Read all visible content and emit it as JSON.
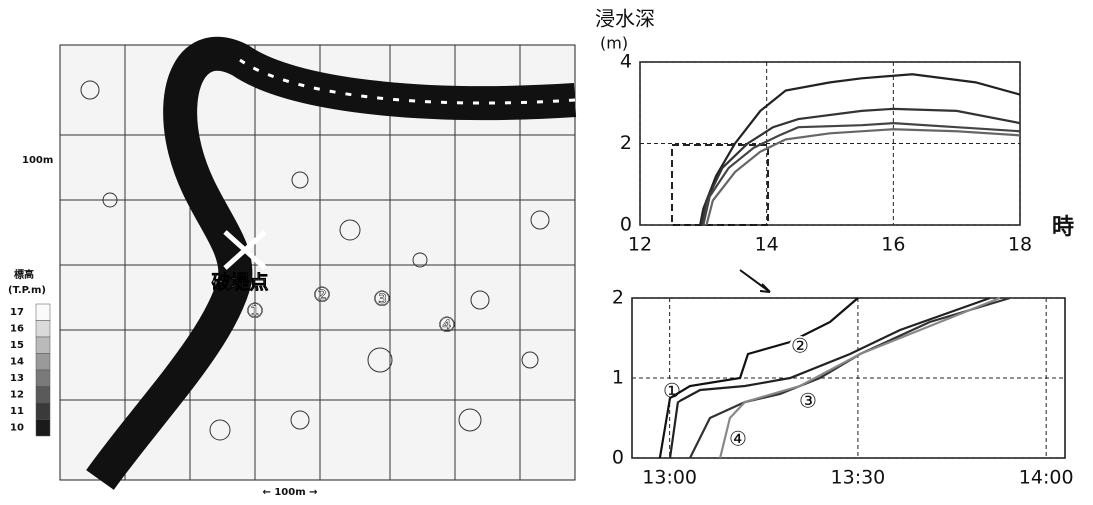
{
  "map": {
    "break_point": "破堤点",
    "points": [
      "①",
      "②",
      "③",
      "④"
    ],
    "legend": {
      "title": "標高",
      "unit": "(T.P.m)",
      "levels": [
        17,
        16,
        15,
        14,
        13,
        12,
        11,
        10
      ]
    },
    "scale_vertical": "100m",
    "scale_horizontal": "← 100m →"
  },
  "chart_data": [
    {
      "type": "line",
      "title": "浸水深",
      "y_label": "(m)",
      "x_label": "時",
      "xlim": [
        12,
        18
      ],
      "xticks": [
        12,
        14,
        16,
        18
      ],
      "ylim": [
        0,
        4
      ],
      "yticks": [
        0,
        2,
        4
      ],
      "grid": true,
      "series": [
        {
          "color": "#222",
          "x": [
            12.95,
            13.0,
            13.2,
            13.5,
            13.9,
            14.3,
            15.0,
            15.5,
            16.3,
            17.3,
            18.0
          ],
          "values": [
            0,
            0.4,
            1.2,
            2.0,
            2.8,
            3.3,
            3.5,
            3.6,
            3.7,
            3.5,
            3.2
          ]
        },
        {
          "color": "#333",
          "x": [
            12.97,
            13.05,
            13.3,
            13.7,
            14.1,
            14.5,
            15.5,
            16.0,
            17.0,
            18.0
          ],
          "values": [
            0,
            0.6,
            1.4,
            2.0,
            2.4,
            2.6,
            2.8,
            2.85,
            2.8,
            2.5
          ]
        },
        {
          "color": "#444",
          "x": [
            13.0,
            13.1,
            13.4,
            13.8,
            14.2,
            14.5,
            15.5,
            16.0,
            17.0,
            18.0
          ],
          "values": [
            0,
            0.7,
            1.4,
            1.9,
            2.2,
            2.4,
            2.45,
            2.5,
            2.4,
            2.3
          ]
        },
        {
          "color": "#666",
          "x": [
            13.05,
            13.15,
            13.5,
            13.9,
            14.3,
            15.0,
            16.0,
            17.0,
            18.0
          ],
          "values": [
            0,
            0.6,
            1.3,
            1.8,
            2.1,
            2.25,
            2.35,
            2.3,
            2.2
          ]
        }
      ]
    },
    {
      "type": "line",
      "xlim": [
        12.9,
        14.05
      ],
      "xticks": [
        {
          "value": 13,
          "label": "13:00"
        },
        {
          "value": 13.5,
          "label": "13:30"
        },
        {
          "value": 14,
          "label": "14:00"
        }
      ],
      "ylim": [
        0,
        2
      ],
      "yticks": [
        0,
        1,
        2
      ],
      "grid": true,
      "series": [
        {
          "name": "①",
          "color": "#222",
          "x": [
            13.001,
            13.022,
            13.081,
            13.2,
            13.32,
            13.479,
            13.612,
            13.851
          ],
          "values": [
            0,
            0.7,
            0.85,
            0.9,
            1.0,
            1.3,
            1.6,
            2.0
          ]
        },
        {
          "name": "②",
          "color": "#111",
          "x": [
            12.974,
            13.001,
            13.054,
            13.187,
            13.208,
            13.32,
            13.426,
            13.5
          ],
          "values": [
            0,
            0.75,
            0.9,
            1.0,
            1.3,
            1.45,
            1.7,
            2.0
          ]
        },
        {
          "name": "③",
          "color": "#333",
          "x": [
            13.054,
            13.107,
            13.2,
            13.293,
            13.399,
            13.506,
            13.691,
            13.904
          ],
          "values": [
            0,
            0.5,
            0.7,
            0.8,
            1.0,
            1.3,
            1.7,
            2.0
          ]
        },
        {
          "name": "④",
          "color": "#888",
          "x": [
            13.134,
            13.16,
            13.2,
            13.346,
            13.506,
            13.877
          ],
          "values": [
            0,
            0.5,
            0.7,
            0.9,
            1.3,
            2.0
          ]
        }
      ]
    }
  ]
}
